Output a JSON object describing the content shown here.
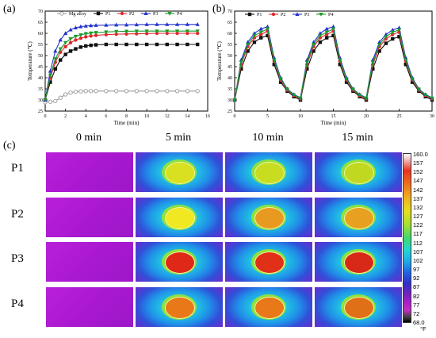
{
  "panels": {
    "a": "(a)",
    "b": "(b)",
    "c": "(c)"
  },
  "chart_data": [
    {
      "type": "line",
      "panel": "(a)",
      "xlabel": "Time (min)",
      "ylabel": "Temperature (℃)",
      "xlim": [
        0,
        16
      ],
      "ylim": [
        25,
        70
      ],
      "xticks": [
        0,
        2,
        4,
        6,
        8,
        10,
        12,
        14,
        16
      ],
      "yticks": [
        25,
        30,
        35,
        40,
        45,
        50,
        55,
        60,
        65,
        70
      ],
      "legend": "top",
      "x": [
        0,
        0.5,
        1,
        1.5,
        2,
        2.5,
        3,
        3.5,
        4,
        4.5,
        5,
        6,
        7,
        8,
        9,
        10,
        11,
        12,
        13,
        14,
        15
      ],
      "series": [
        {
          "name": "Mg alloy",
          "color": "#9a9a9a",
          "marker": "circle-open",
          "values": [
            29,
            29.2,
            29.5,
            31,
            32.5,
            33.3,
            33.7,
            33.9,
            34,
            34,
            34,
            34,
            34,
            34,
            34,
            34,
            34,
            34,
            34,
            34,
            34
          ]
        },
        {
          "name": "P1",
          "color": "#111111",
          "marker": "square",
          "values": [
            30,
            38,
            44,
            48,
            50.5,
            52,
            53,
            53.8,
            54.3,
            54.6,
            54.8,
            55,
            55,
            55,
            55,
            55,
            55,
            55,
            55,
            55,
            55
          ]
        },
        {
          "name": "P2",
          "color": "#e3262b",
          "marker": "circle",
          "values": [
            30,
            40,
            47,
            51.5,
            54,
            55.8,
            57,
            57.8,
            58.4,
            58.8,
            59.1,
            59.4,
            59.6,
            59.7,
            59.8,
            59.9,
            60,
            60,
            60,
            60,
            60
          ]
        },
        {
          "name": "P3",
          "color": "#2233cc",
          "marker": "triangle",
          "values": [
            30,
            43,
            52,
            57,
            60,
            61.6,
            62.5,
            63,
            63.3,
            63.5,
            63.6,
            63.7,
            63.8,
            63.8,
            63.9,
            64,
            64,
            64,
            64,
            64,
            64
          ]
        },
        {
          "name": "P4",
          "color": "#1a9a2a",
          "marker": "triangle-down",
          "values": [
            30,
            41,
            48.5,
            53,
            55.8,
            57.5,
            58.6,
            59.3,
            59.8,
            60.1,
            60.3,
            60.6,
            60.8,
            60.9,
            61,
            61,
            61,
            61,
            61,
            61,
            61
          ]
        }
      ]
    },
    {
      "type": "line",
      "panel": "(b)",
      "xlabel": "Time (min)",
      "ylabel": "Temperature (℃)",
      "xlim": [
        0,
        30
      ],
      "ylim": [
        25,
        70
      ],
      "xticks": [
        0,
        5,
        10,
        15,
        20,
        25,
        30
      ],
      "yticks": [
        25,
        30,
        35,
        40,
        45,
        50,
        55,
        60,
        65,
        70
      ],
      "legend": "top-left",
      "x": [
        0,
        1,
        2,
        3,
        4,
        5,
        6,
        7,
        8,
        9,
        10,
        11,
        12,
        13,
        14,
        15,
        16,
        17,
        18,
        19,
        20,
        21,
        22,
        23,
        24,
        25,
        26,
        27,
        28,
        29,
        30
      ],
      "series": [
        {
          "name": "P1",
          "color": "#111111",
          "marker": "square",
          "values": [
            30,
            44,
            52,
            56,
            58,
            59,
            46,
            38,
            34,
            31.5,
            30,
            44,
            52,
            56,
            58,
            59,
            46,
            38,
            34,
            31.5,
            30,
            44,
            52,
            55.5,
            57.5,
            58.5,
            46,
            38,
            34,
            31.5,
            30
          ]
        },
        {
          "name": "P2",
          "color": "#e3262b",
          "marker": "circle",
          "values": [
            30,
            46,
            54,
            58,
            59.5,
            61,
            47.5,
            39,
            34.5,
            32,
            30.5,
            46,
            54,
            58,
            59.5,
            61,
            47.5,
            39,
            34.5,
            32,
            30.5,
            46,
            54,
            57.5,
            59.5,
            60.5,
            47.5,
            39,
            34.5,
            32,
            30.5
          ]
        },
        {
          "name": "P3",
          "color": "#2233cc",
          "marker": "triangle",
          "values": [
            30,
            48,
            56,
            60,
            62,
            63,
            49,
            40,
            35,
            32.5,
            31,
            48,
            56,
            60,
            62,
            63,
            49,
            40,
            35,
            32.5,
            31,
            48,
            56,
            59.5,
            61.5,
            62.5,
            49,
            40,
            35,
            32.5,
            31
          ]
        },
        {
          "name": "P4",
          "color": "#1a9a2a",
          "marker": "triangle-down",
          "values": [
            30,
            47,
            55,
            59,
            60.5,
            62,
            48,
            39.5,
            34.8,
            32.2,
            30.8,
            47,
            55,
            59,
            60.5,
            62,
            48,
            39.5,
            34.8,
            32.2,
            30.8,
            47,
            55,
            58.5,
            60.5,
            61.5,
            48,
            39.5,
            34.8,
            32.2,
            30.8
          ]
        }
      ]
    },
    {
      "type": "heatmap",
      "panel": "(c)",
      "columns": [
        "0 min",
        "5 min",
        "10 min",
        "15 min"
      ],
      "rows": [
        "P1",
        "P2",
        "P3",
        "P4"
      ],
      "colorbar_unit": "°F",
      "colorbar_ticks": [
        "160.0",
        "157",
        "152",
        "147",
        "142",
        "137",
        "132",
        "127",
        "122",
        "117",
        "112",
        "107",
        "102",
        "97",
        "92",
        "87",
        "82",
        "77",
        "72",
        "68.0"
      ],
      "spot_colors": [
        [
          "none",
          "#d8e020",
          "#c8dc20",
          "#c0d820"
        ],
        [
          "none",
          "#f0e820",
          "#e89a20",
          "#e8a020"
        ],
        [
          "none",
          "#e02818",
          "#e03018",
          "#d82818"
        ],
        [
          "none",
          "#e87818",
          "#e87818",
          "#e07018"
        ]
      ]
    }
  ]
}
